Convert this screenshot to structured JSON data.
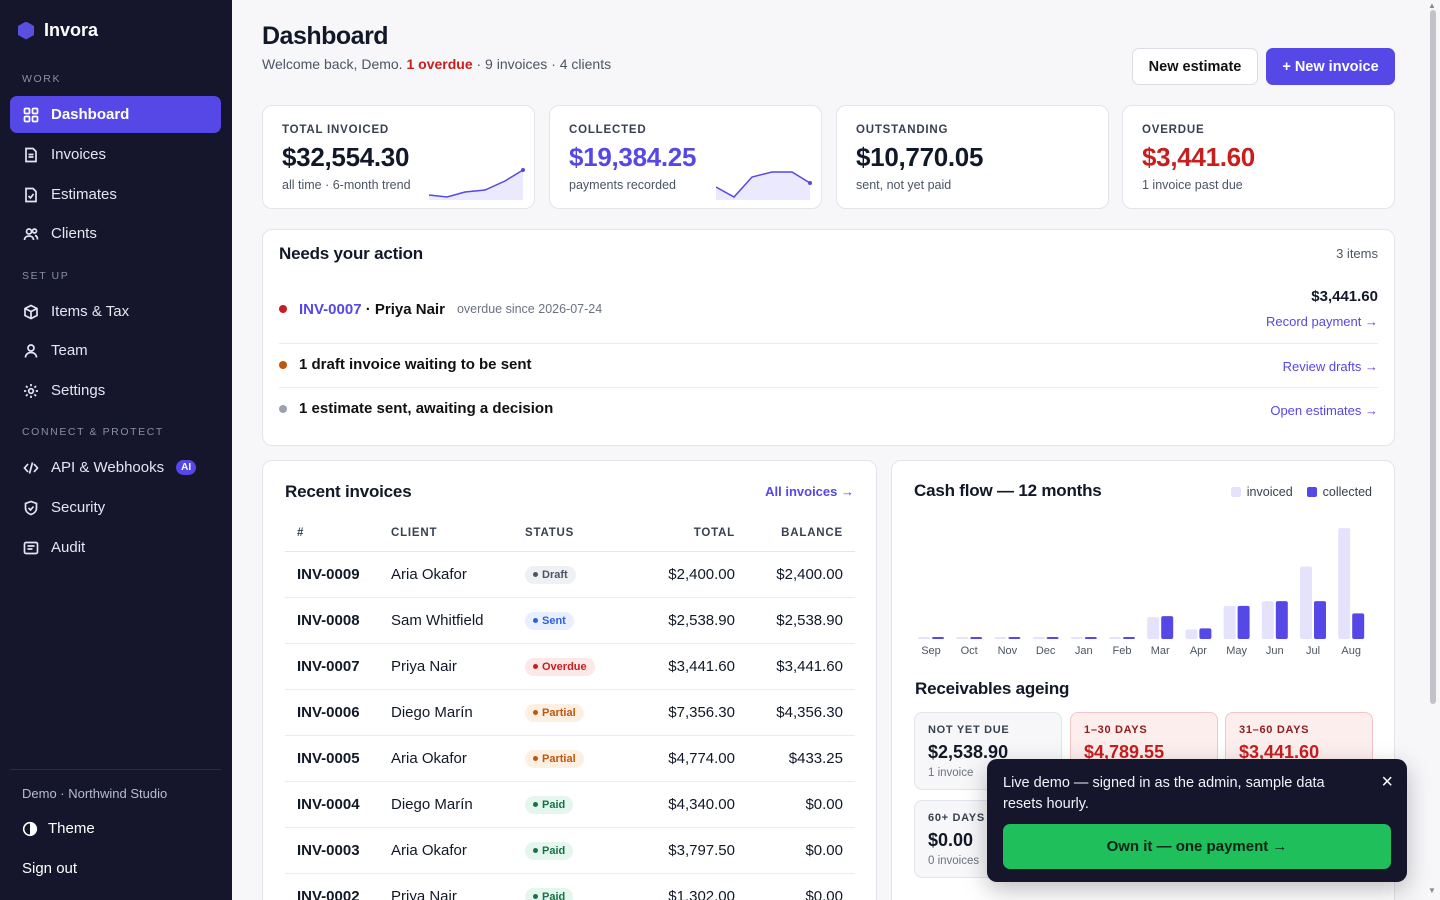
{
  "app": {
    "name": "Invora"
  },
  "sidebar": {
    "sections": [
      "WORK",
      "SET UP",
      "CONNECT & PROTECT"
    ],
    "items": [
      {
        "label": "Dashboard",
        "icon": "grid-icon",
        "active": true
      },
      {
        "label": "Invoices",
        "icon": "document-icon"
      },
      {
        "label": "Estimates",
        "icon": "estimate-icon"
      },
      {
        "label": "Clients",
        "icon": "users-icon"
      },
      {
        "label": "Items & Tax",
        "icon": "box-icon"
      },
      {
        "label": "Team",
        "icon": "user-icon"
      },
      {
        "label": "Settings",
        "icon": "gear-icon"
      },
      {
        "label": "API & Webhooks",
        "icon": "code-icon",
        "badge": "AI"
      },
      {
        "label": "Security",
        "icon": "shield-icon"
      },
      {
        "label": "Audit",
        "icon": "audit-icon"
      }
    ],
    "workspace": "Demo · Northwind Studio",
    "theme_label": "Theme",
    "signout_label": "Sign out"
  },
  "header": {
    "title": "Dashboard",
    "welcome": "Welcome back, Demo.",
    "overdue": "1 overdue",
    "rest": "· 9 invoices · 4 clients",
    "new_estimate": "New estimate",
    "new_invoice": "+ New invoice"
  },
  "kpis": [
    {
      "label": "TOTAL INVOICED",
      "value": "$32,554.30",
      "sub": "all time · 6-month trend",
      "color": "#111827"
    },
    {
      "label": "COLLECTED",
      "value": "$19,384.25",
      "sub": "payments recorded",
      "color": "#5548e6"
    },
    {
      "label": "OUTSTANDING",
      "value": "$10,770.05",
      "sub": "sent, not yet paid",
      "color": "#111827"
    },
    {
      "label": "OVERDUE",
      "value": "$3,441.60",
      "sub": "1 invoice past due",
      "color": "#c81e1e"
    }
  ],
  "action": {
    "title": "Needs your action",
    "count": "3 items",
    "rows": [
      {
        "inv": "INV-0007",
        "client": "· Priya Nair",
        "since": "overdue since 2026-07-24",
        "amount": "$3,441.60",
        "link": "Record payment →",
        "color": "#c81e1e"
      },
      {
        "text": "1 draft invoice waiting to be sent",
        "link": "Review drafts →",
        "color": "#c2560c"
      },
      {
        "text": "1 estimate sent, awaiting a decision",
        "link": "Open estimates →",
        "color": "#9ca3af"
      }
    ]
  },
  "recent": {
    "title": "Recent invoices",
    "all_link": "All invoices →",
    "columns": [
      "#",
      "CLIENT",
      "STATUS",
      "TOTAL",
      "BALANCE"
    ],
    "rows": [
      [
        "INV-0009",
        "Aria Okafor",
        "Draft",
        "$2,400.00",
        "$2,400.00"
      ],
      [
        "INV-0008",
        "Sam Whitfield",
        "Sent",
        "$2,538.90",
        "$2,538.90"
      ],
      [
        "INV-0007",
        "Priya Nair",
        "Overdue",
        "$3,441.60",
        "$3,441.60"
      ],
      [
        "INV-0006",
        "Diego Marín",
        "Partial",
        "$7,356.30",
        "$4,356.30"
      ],
      [
        "INV-0005",
        "Aria Okafor",
        "Partial",
        "$4,774.00",
        "$433.25"
      ],
      [
        "INV-0004",
        "Diego Marín",
        "Paid",
        "$4,340.00",
        "$0.00"
      ],
      [
        "INV-0003",
        "Aria Okafor",
        "Paid",
        "$3,797.50",
        "$0.00"
      ],
      [
        "INV-0002",
        "Priya Nair",
        "Paid",
        "$1,302.00",
        "$0.00"
      ]
    ]
  },
  "cashflow": {
    "title": "Cash flow — 12 months",
    "legend_invoiced": "invoiced",
    "legend_collected": "collected"
  },
  "chart_data": {
    "type": "bar",
    "categories": [
      "Sep",
      "Oct",
      "Nov",
      "Dec",
      "Jan",
      "Feb",
      "Mar",
      "Apr",
      "May",
      "Jun",
      "Jul",
      "Aug"
    ],
    "series": [
      {
        "name": "invoiced",
        "values": [
          50,
          50,
          50,
          50,
          50,
          50,
          4100,
          1800,
          6200,
          7100,
          13600,
          20800
        ],
        "color": "#e5e3fb"
      },
      {
        "name": "collected",
        "values": [
          80,
          80,
          80,
          80,
          80,
          80,
          4300,
          2000,
          6200,
          7100,
          7100,
          4800
        ],
        "color": "#5548e6"
      }
    ],
    "ylim": [
      0,
      21000
    ]
  },
  "ageing": {
    "title": "Receivables ageing",
    "buckets": [
      {
        "label": "NOT YET DUE",
        "value": "$2,538.90",
        "sub": "1 invoice"
      },
      {
        "label": "1–30 DAYS",
        "value": "$4,789.55",
        "sub": ""
      },
      {
        "label": "31–60 DAYS",
        "value": "$3,441.60",
        "sub": ""
      },
      {
        "label": "60+ DAYS",
        "value": "$0.00",
        "sub": "0 invoices"
      }
    ]
  },
  "toast": {
    "message": "Live demo — signed in as the admin, sample data resets hourly.",
    "cta": "Own it — one payment →",
    "close": "×"
  }
}
